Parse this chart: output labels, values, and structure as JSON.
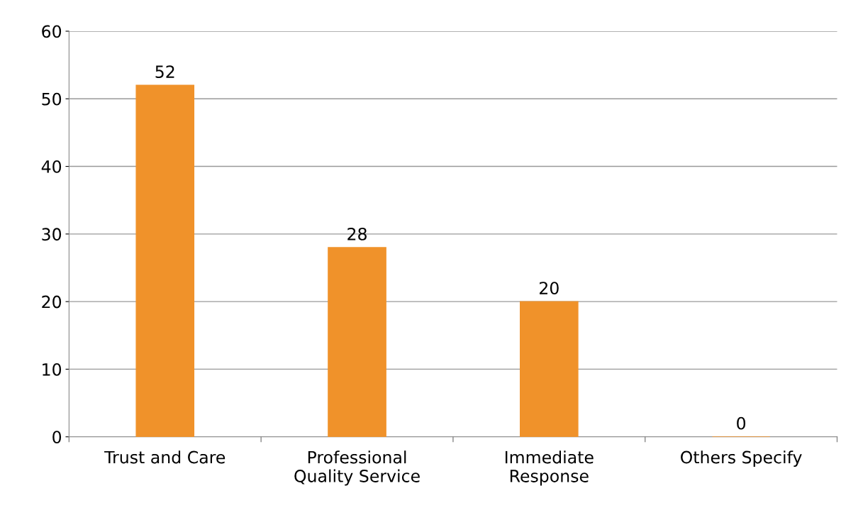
{
  "chart_data": {
    "type": "bar",
    "categories": [
      "Trust and Care",
      "Professional Quality Service",
      "Immediate Response",
      "Others Specify"
    ],
    "values": [
      52,
      28,
      20,
      0
    ],
    "color": "#f0922a",
    "ylim": [
      0,
      60
    ],
    "yticks": [
      0,
      10,
      20,
      30,
      40,
      50,
      60
    ],
    "grid": "y",
    "data_labels": true,
    "legend": false
  }
}
